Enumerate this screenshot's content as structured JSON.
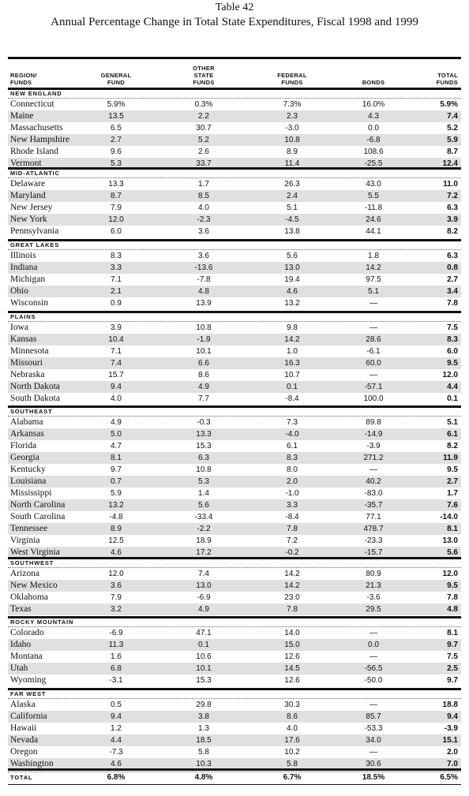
{
  "table_number": "Table 42",
  "title": "Annual Percentage Change in Total State Expenditures, Fiscal 1998 and 1999",
  "headers": {
    "region": [
      "REGION/",
      "FUNDS"
    ],
    "general": [
      "GENERAL",
      "FUND"
    ],
    "other": [
      "OTHER",
      "STATE",
      "FUNDS"
    ],
    "federal": [
      "FEDERAL",
      "FUNDS"
    ],
    "bonds": [
      "BONDS"
    ],
    "total": [
      "TOTAL",
      "FUNDS"
    ]
  },
  "regions": [
    {
      "name": "NEW ENGLAND",
      "rows": [
        [
          "Connecticut",
          "5.9%",
          "0.3%",
          "7.3%",
          "16.0%",
          "5.9%"
        ],
        [
          "Maine",
          "13.5",
          "2.2",
          "2.3",
          "4.3",
          "7.4"
        ],
        [
          "Massachusetts",
          "6.5",
          "30.7",
          "-3.0",
          "0.0",
          "5.2"
        ],
        [
          "New Hampshire",
          "2.7",
          "5.2",
          "10.8",
          "-6.8",
          "5.9"
        ],
        [
          "Rhode Island",
          "9.6",
          "2.6",
          "8.9",
          "108.6",
          "8.7"
        ],
        [
          "Vermont",
          "5.3",
          "33.7",
          "11.4",
          "-25.5",
          "12.4"
        ]
      ]
    },
    {
      "name": "MID-ATLANTIC",
      "rows": [
        [
          "Delaware",
          "13.3",
          "1.7",
          "26.3",
          "43.0",
          "11.0"
        ],
        [
          "Maryland",
          "8.7",
          "8.5",
          "2.4",
          "5.5",
          "7.2"
        ],
        [
          "New Jersey",
          "7.9",
          "4.0",
          "5.1",
          "-11.8",
          "6.3"
        ],
        [
          "New York",
          "12.0",
          "-2.3",
          "-4.5",
          "24.6",
          "3.9"
        ],
        [
          "Pennsylvania",
          "6.0",
          "3.6",
          "13.8",
          "44.1",
          "8.2"
        ]
      ]
    },
    {
      "name": "GREAT LAKES",
      "rows": [
        [
          "Illinois",
          "8.3",
          "3.6",
          "5.6",
          "1.8",
          "6.3"
        ],
        [
          "Indiana",
          "3.3",
          "-13.6",
          "13.0",
          "14.2",
          "0.8"
        ],
        [
          "Michigan",
          "7.1",
          "-7.8",
          "19.4",
          "97.5",
          "2.7"
        ],
        [
          "Ohio",
          "2.1",
          "4.8",
          "4.6",
          "5.1",
          "3.4"
        ],
        [
          "Wisconsin",
          "0.9",
          "13.9",
          "13.2",
          "—",
          "7.8"
        ]
      ]
    },
    {
      "name": "PLAINS",
      "rows": [
        [
          "Iowa",
          "3.9",
          "10.8",
          "9.8",
          "—",
          "7.5"
        ],
        [
          "Kansas",
          "10.4",
          "-1.9",
          "14.2",
          "28.6",
          "8.3"
        ],
        [
          "Minnesota",
          "7.1",
          "10.1",
          "1.0",
          "-6.1",
          "6.0"
        ],
        [
          "Missouri",
          "7.4",
          "6.6",
          "16.3",
          "60.0",
          "9.5"
        ],
        [
          "Nebraska",
          "15.7",
          "8.6",
          "10.7",
          "—",
          "12.0"
        ],
        [
          "North Dakota",
          "9.4",
          "4.9",
          "0.1",
          "-57.1",
          "4.4"
        ],
        [
          "South Dakota",
          "4.0",
          "7.7",
          "-8.4",
          "100.0",
          "0.1"
        ]
      ]
    },
    {
      "name": "SOUTHEAST",
      "rows": [
        [
          "Alabama",
          "4.9",
          "-0.3",
          "7.3",
          "89.8",
          "5.1"
        ],
        [
          "Arkansas",
          "5.0",
          "13.3",
          "-4.0",
          "-14.9",
          "6.1"
        ],
        [
          "Florida",
          "4.7",
          "15.3",
          "6.1",
          "-3.9",
          "8.2"
        ],
        [
          "Georgia",
          "8.1",
          "6.3",
          "8.3",
          "271.2",
          "11.9"
        ],
        [
          "Kentucky",
          "9.7",
          "10.8",
          "8.0",
          "—",
          "9.5"
        ],
        [
          "Louisiana",
          "0.7",
          "5.3",
          "2.0",
          "40.2",
          "2.7"
        ],
        [
          "Mississippi",
          "5.9",
          "1.4",
          "-1.0",
          "-83.0",
          "1.7"
        ],
        [
          "North Carolina",
          "13.2",
          "5.6",
          "3.3",
          "-35.7",
          "7.6"
        ],
        [
          "South Carolina",
          "-4.8",
          "-33.4",
          "-8.4",
          "77.1",
          "-14.0"
        ],
        [
          "Tennessee",
          "8.9",
          "-2.2",
          "7.8",
          "478.7",
          "8.1"
        ],
        [
          "Virginia",
          "12.5",
          "18.9",
          "7.2",
          "-23.3",
          "13.0"
        ],
        [
          "West Virginia",
          "4.6",
          "17.2",
          "-0.2",
          "-15.7",
          "5.6"
        ]
      ]
    },
    {
      "name": "SOUTHWEST",
      "rows": [
        [
          "Arizona",
          "12.0",
          "7.4",
          "14.2",
          "80.9",
          "12.0"
        ],
        [
          "New Mexico",
          "3.6",
          "13.0",
          "14.2",
          "21.3",
          "9.5"
        ],
        [
          "Oklahoma",
          "7.9",
          "-6.9",
          "23.0",
          "-3.6",
          "7.8"
        ],
        [
          "Texas",
          "3.2",
          "4.9",
          "7.8",
          "29.5",
          "4.8"
        ]
      ]
    },
    {
      "name": "ROCKY MOUNTAIN",
      "rows": [
        [
          "Colorado",
          "-6.9",
          "47.1",
          "14.0",
          "—",
          "8.1"
        ],
        [
          "Idaho",
          "11.3",
          "0.1",
          "15.0",
          "0.0",
          "9.7"
        ],
        [
          "Montana",
          "1.6",
          "10.6",
          "12.6",
          "—",
          "7.5"
        ],
        [
          "Utah",
          "6.8",
          "10.1",
          "14.5",
          "-56.5",
          "2.5"
        ],
        [
          "Wyoming",
          "-3.1",
          "15.3",
          "12.6",
          "-50.0",
          "9.7"
        ]
      ]
    },
    {
      "name": "FAR WEST",
      "rows": [
        [
          "Alaska",
          "0.5",
          "29.8",
          "30.3",
          "—",
          "18.8"
        ],
        [
          "California",
          "9.4",
          "3.8",
          "8.6",
          "85.7",
          "9.4"
        ],
        [
          "Hawaii",
          "1.2",
          "1.3",
          "4.0",
          "-53.3",
          "-3.9"
        ],
        [
          "Nevada",
          "4.4",
          "18.5",
          "17.6",
          "34.0",
          "15.1"
        ],
        [
          "Oregon",
          "-7.3",
          "5.8",
          "10.2",
          "—",
          "2.0"
        ],
        [
          "Washington",
          "4.6",
          "10.3",
          "5.8",
          "30.6",
          "7.0"
        ]
      ]
    }
  ],
  "total": [
    "TOTAL",
    "6.8%",
    "4.8%",
    "6.7%",
    "18.5%",
    "6.5%"
  ]
}
